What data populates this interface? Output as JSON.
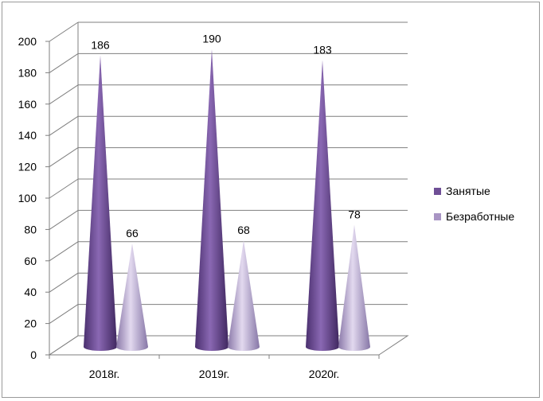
{
  "chart_data": {
    "type": "bar",
    "style": "3d-cone",
    "categories": [
      "2018г.",
      "2019г.",
      "2020г."
    ],
    "series": [
      {
        "name": "Занятые",
        "values": [
          186,
          190,
          183
        ],
        "color": "#6f4f96"
      },
      {
        "name": "Безработные",
        "values": [
          66,
          68,
          78
        ],
        "color": "#a995c4"
      }
    ],
    "ylim": [
      0,
      200
    ],
    "yticks": [
      "0",
      "20",
      "40",
      "60",
      "80",
      "100",
      "120",
      "140",
      "160",
      "180",
      "200"
    ],
    "data_labels": [
      [
        "186",
        "190",
        "183"
      ],
      [
        "66",
        "68",
        "78"
      ]
    ],
    "grid": true,
    "legend_position": "right"
  }
}
